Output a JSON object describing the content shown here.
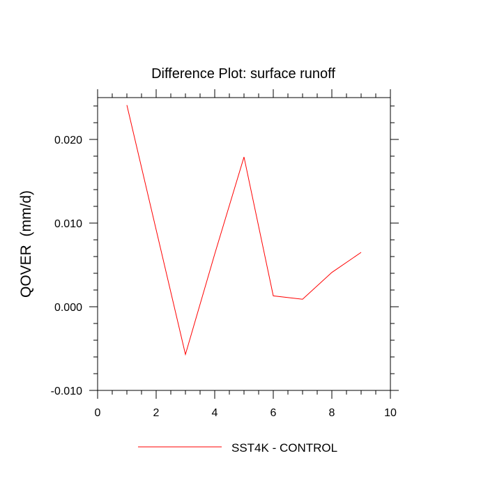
{
  "chart_data": {
    "type": "line",
    "title": "Difference Plot: surface runoff",
    "ylabel": "QOVER  (mm/d)",
    "xlabel": "",
    "xlim": [
      0,
      10
    ],
    "ylim": [
      -0.01,
      0.025
    ],
    "x_ticks": [
      0,
      2,
      4,
      6,
      8,
      10
    ],
    "y_ticks": [
      -0.01,
      0.0,
      0.01,
      0.02
    ],
    "x_tick_labels": [
      "0",
      "2",
      "4",
      "6",
      "8",
      "10"
    ],
    "y_tick_labels": [
      "-0.010",
      "0.000",
      "0.010",
      "0.020"
    ],
    "grid": false,
    "legend_position": "bottom-center",
    "series": [
      {
        "name": "SST4K - CONTROL",
        "color": "#ff0000",
        "x": [
          1,
          2,
          3,
          4,
          5,
          6,
          7,
          8,
          9
        ],
        "y": [
          0.0241,
          0.0092,
          -0.0057,
          0.0063,
          0.0179,
          0.0013,
          0.0009,
          0.0041,
          0.0065
        ]
      }
    ]
  }
}
